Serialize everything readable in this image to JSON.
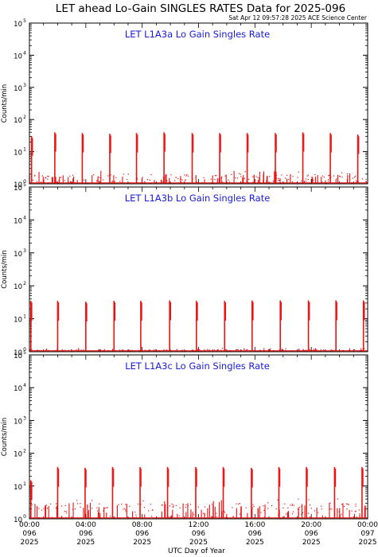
{
  "figure": {
    "title": "LET ahead Lo-Gain SINGLES RATES Data for 2025-096",
    "timestamp": "Sat Apr 12 09:57:28 2025 ACE Science Center",
    "xlabel": "UTC Day of Year",
    "ylabel": "Counts/min",
    "colors": {
      "data": "#ee1111",
      "panel_title": "#1a1adc",
      "axes": "#000000",
      "background": "#ffffff"
    }
  },
  "chart_data": [
    {
      "type": "line",
      "title": "LET L1A3a Lo Gain Singles Rate",
      "xlabel": "UTC Day of Year",
      "ylabel": "Counts/min",
      "yscale": "log",
      "ylim": [
        1,
        100000
      ],
      "xlim": [
        0,
        24
      ],
      "yticks": [
        "10^0",
        "10^1",
        "10^2",
        "10^3",
        "10^4",
        "10^5"
      ],
      "baseline_range": [
        1,
        2
      ],
      "spikes": [
        {
          "x": 0.15,
          "top": 30
        },
        {
          "x": 1.8,
          "top": 40
        },
        {
          "x": 3.75,
          "top": 38
        },
        {
          "x": 5.7,
          "top": 36
        },
        {
          "x": 7.6,
          "top": 38
        },
        {
          "x": 9.55,
          "top": 40
        },
        {
          "x": 11.55,
          "top": 38
        },
        {
          "x": 13.5,
          "top": 38
        },
        {
          "x": 15.45,
          "top": 38
        },
        {
          "x": 17.45,
          "top": 38
        },
        {
          "x": 19.4,
          "top": 40
        },
        {
          "x": 21.35,
          "top": 38
        },
        {
          "x": 23.3,
          "top": 34
        }
      ]
    },
    {
      "type": "line",
      "title": "LET L1A3b Lo Gain Singles Rate",
      "xlabel": "UTC Day of Year",
      "ylabel": "Counts/min",
      "yscale": "log",
      "ylim": [
        1,
        100000
      ],
      "xlim": [
        0,
        24
      ],
      "yticks": [
        "10^0",
        "10^1",
        "10^2",
        "10^3",
        "10^4",
        "10^5"
      ],
      "baseline_range": [
        1,
        1.2
      ],
      "spikes": [
        {
          "x": 0.1,
          "top": 35
        },
        {
          "x": 2.0,
          "top": 35
        },
        {
          "x": 4.0,
          "top": 33
        },
        {
          "x": 6.0,
          "top": 35
        },
        {
          "x": 7.9,
          "top": 35
        },
        {
          "x": 9.95,
          "top": 36
        },
        {
          "x": 11.85,
          "top": 35
        },
        {
          "x": 13.85,
          "top": 35
        },
        {
          "x": 15.8,
          "top": 36
        },
        {
          "x": 17.8,
          "top": 36
        },
        {
          "x": 19.8,
          "top": 36
        },
        {
          "x": 21.75,
          "top": 36
        },
        {
          "x": 23.7,
          "top": 36
        }
      ]
    },
    {
      "type": "line",
      "title": "LET L1A3c Lo Gain Singles Rate",
      "xlabel": "UTC Day of Year",
      "ylabel": "Counts/min",
      "yscale": "log",
      "ylim": [
        1,
        100000
      ],
      "xlim": [
        0,
        24
      ],
      "yticks": [
        "10^0",
        "10^1",
        "10^2",
        "10^3",
        "10^4",
        "10^5"
      ],
      "baseline_range": [
        1,
        3
      ],
      "spikes": [
        {
          "x": 0.1,
          "top": 15
        },
        {
          "x": 2.0,
          "top": 38
        },
        {
          "x": 3.95,
          "top": 36
        },
        {
          "x": 5.9,
          "top": 38
        },
        {
          "x": 7.85,
          "top": 38
        },
        {
          "x": 9.8,
          "top": 38
        },
        {
          "x": 11.8,
          "top": 38
        },
        {
          "x": 13.75,
          "top": 38
        },
        {
          "x": 15.75,
          "top": 36
        },
        {
          "x": 17.7,
          "top": 38
        },
        {
          "x": 19.65,
          "top": 38
        },
        {
          "x": 21.65,
          "top": 38
        },
        {
          "x": 23.6,
          "top": 38
        }
      ]
    }
  ],
  "xaxis": {
    "ticks": [
      {
        "x": 0,
        "time": "00:00",
        "doy": "096",
        "year": "2025"
      },
      {
        "x": 4,
        "time": "04:00",
        "doy": "096",
        "year": "2025"
      },
      {
        "x": 8,
        "time": "08:00",
        "doy": "096",
        "year": "2025"
      },
      {
        "x": 12,
        "time": "12:00",
        "doy": "096",
        "year": "2025"
      },
      {
        "x": 16,
        "time": "16:00",
        "doy": "096",
        "year": "2025"
      },
      {
        "x": 20,
        "time": "20:00",
        "doy": "096",
        "year": "2025"
      },
      {
        "x": 24,
        "time": "00:00",
        "doy": "097",
        "year": "2025"
      }
    ]
  }
}
